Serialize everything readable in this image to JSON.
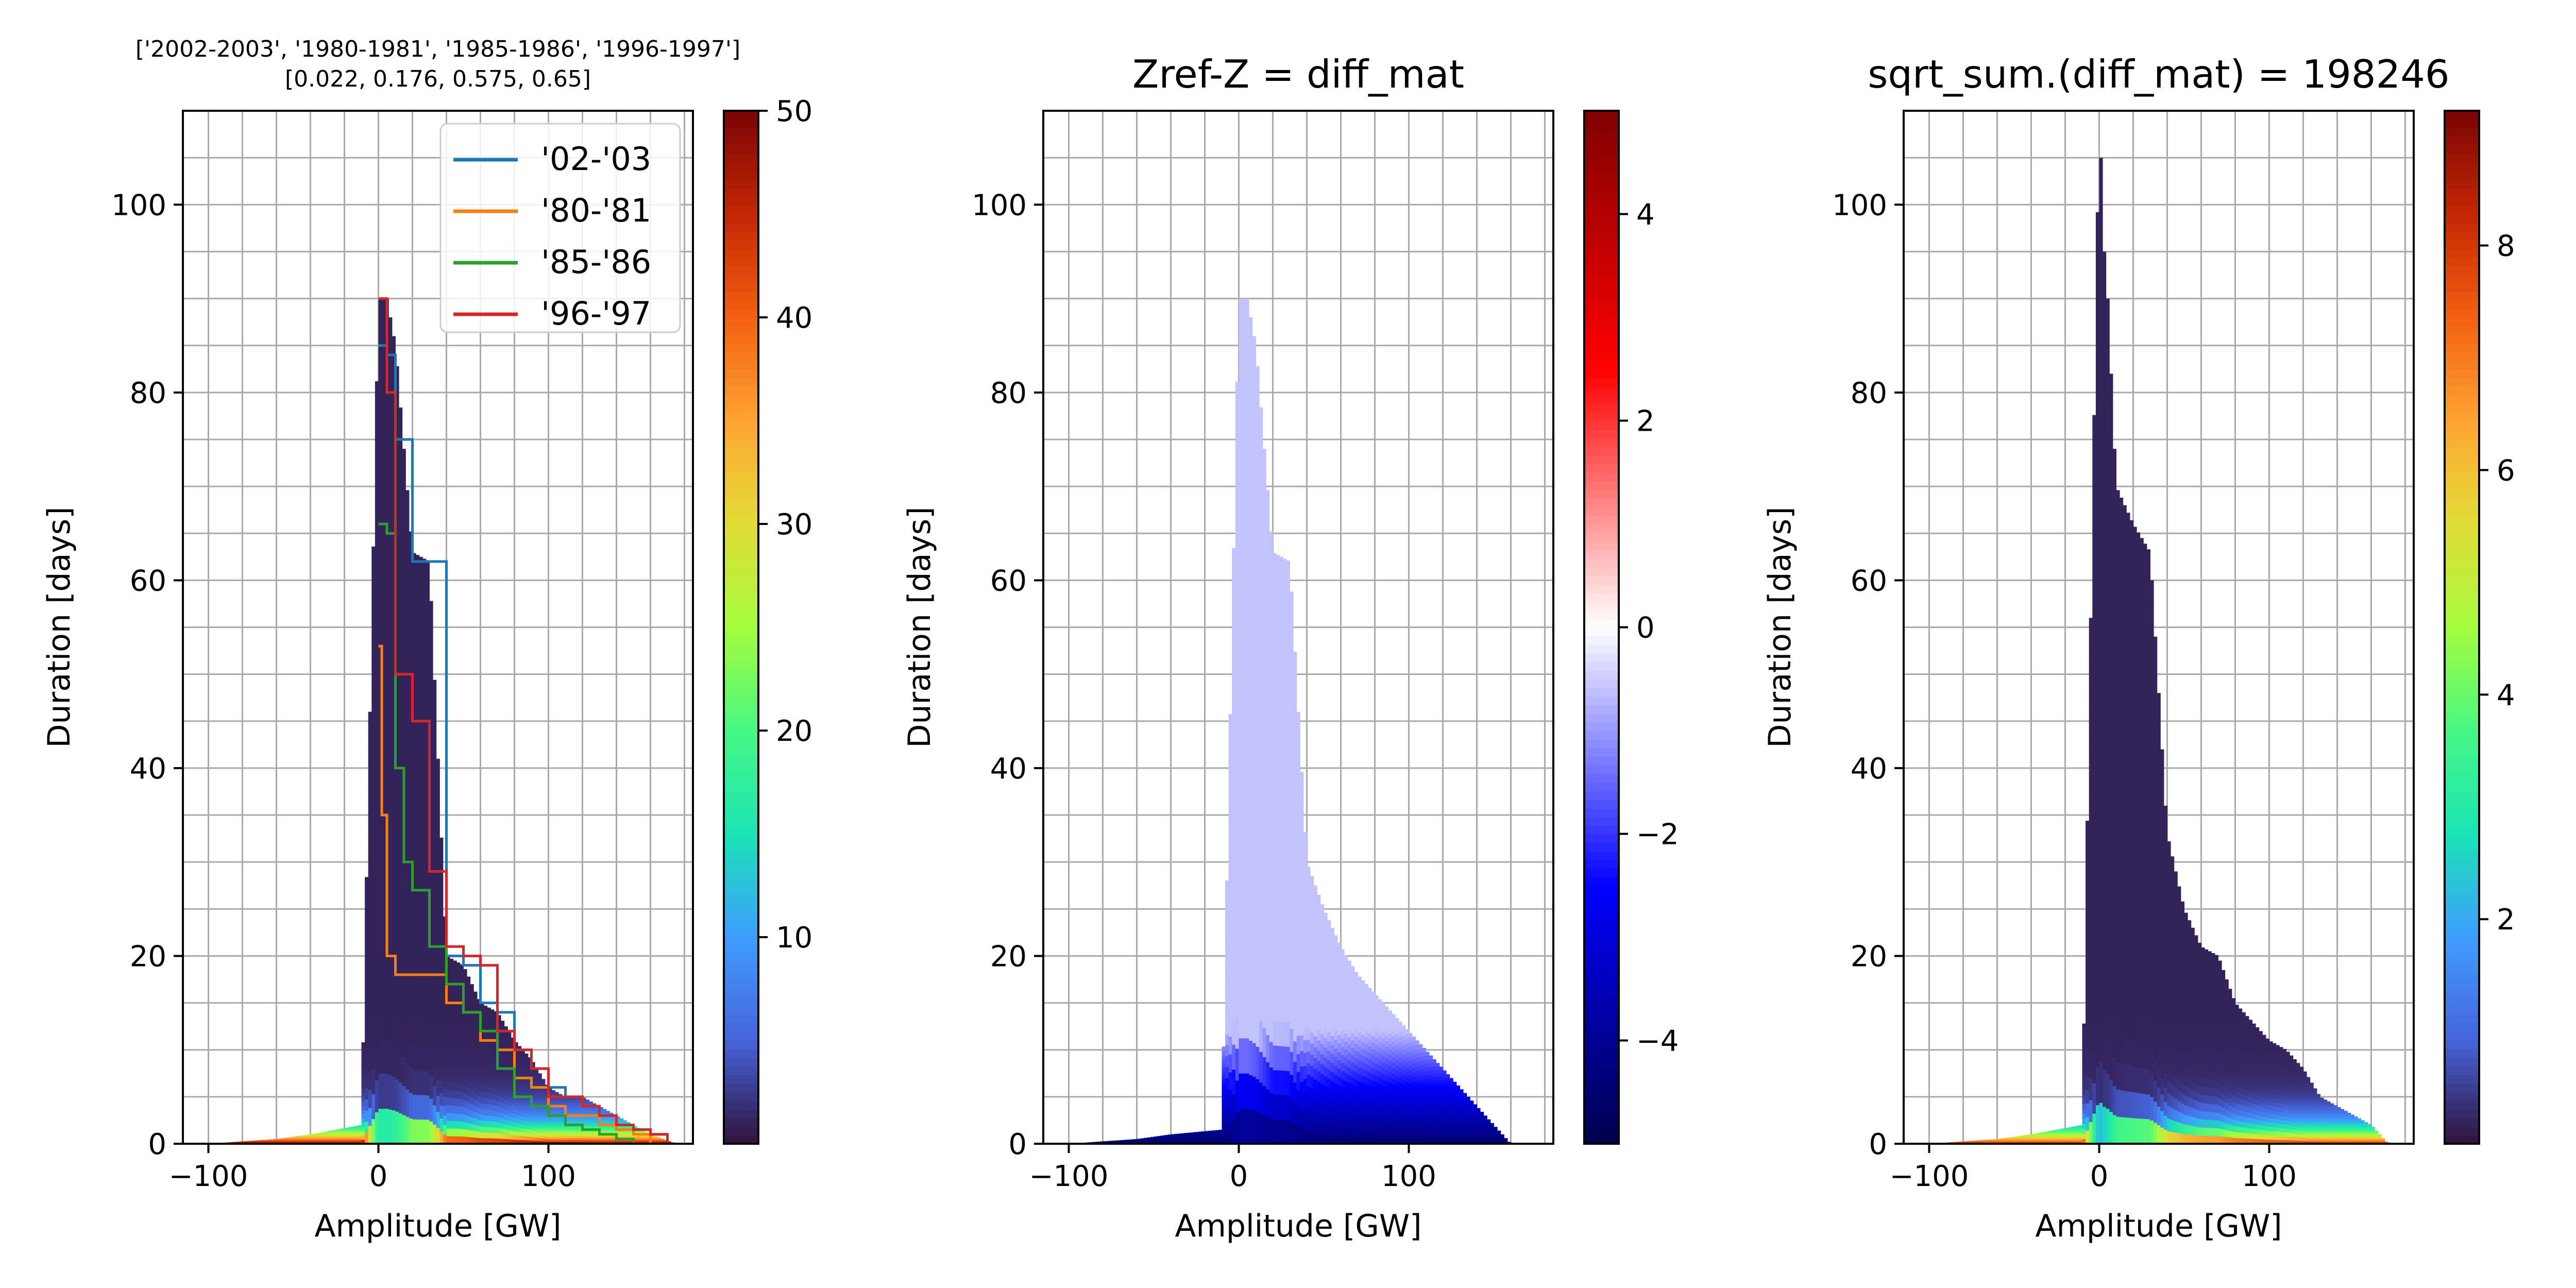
{
  "chart_data": [
    {
      "type": "heatmap",
      "title": "['2002-2003', '1980-1981', '1985-1986', '1996-1997']\n[0.022, 0.176, 0.575, 0.65]",
      "xlabel": "Amplitude [GW]",
      "ylabel": "Duration [days]",
      "xlim": [
        -115,
        185
      ],
      "ylim": [
        0,
        110
      ],
      "xticks": [
        -100,
        0,
        100
      ],
      "yticks": [
        0,
        20,
        40,
        60,
        80,
        100
      ],
      "grid": true,
      "colormap": "turbo",
      "colorbar": {
        "min": 0,
        "max": 50,
        "ticks": [
          10,
          20,
          30,
          40,
          50
        ]
      },
      "legend": {
        "placement": "top-right",
        "entries": [
          "'02-'03",
          "'80-'81",
          "'85-'86",
          "'96-'97"
        ]
      },
      "heat_profile": {
        "amplitude": [
          -100,
          -60,
          -40,
          -10,
          0,
          5,
          10,
          20,
          30,
          40,
          50,
          60,
          70,
          80,
          90,
          100,
          110,
          120,
          130,
          140,
          150,
          160,
          175
        ],
        "max_duration": [
          0,
          0.5,
          1,
          2,
          90,
          90,
          85,
          63,
          62,
          20,
          19,
          15,
          14,
          11,
          9,
          6,
          5,
          5,
          4,
          3,
          2,
          1,
          0
        ]
      },
      "series": [
        {
          "name": "'02-'03",
          "color": "#1f77b4",
          "x": [
            0,
            5,
            10,
            20,
            30,
            40,
            50,
            60,
            70,
            80,
            90,
            100,
            110,
            120,
            130,
            140,
            150,
            160,
            170
          ],
          "y": [
            85,
            84,
            75,
            62,
            62,
            20,
            19,
            15,
            14,
            10,
            8,
            6,
            5,
            4,
            3,
            2,
            1.5,
            1,
            0
          ]
        },
        {
          "name": "'80-'81",
          "color": "#ff7f0e",
          "x": [
            0,
            2,
            5,
            10,
            20,
            30,
            40,
            50,
            60,
            70,
            80,
            90,
            100,
            110,
            120,
            130,
            140,
            150,
            160
          ],
          "y": [
            53,
            35,
            20,
            18,
            18,
            18,
            15,
            14,
            11,
            10,
            7,
            6,
            4,
            3,
            3,
            2,
            1.5,
            1,
            0
          ]
        },
        {
          "name": "'85-'86",
          "color": "#2ca02c",
          "x": [
            0,
            5,
            10,
            15,
            20,
            30,
            40,
            50,
            60,
            70,
            80,
            90,
            100,
            110,
            120,
            130,
            140,
            150
          ],
          "y": [
            66,
            65,
            40,
            30,
            27,
            21,
            17,
            14,
            12,
            8,
            5,
            4,
            3,
            2,
            1.5,
            1,
            0.5,
            0
          ]
        },
        {
          "name": "'96-'97",
          "color": "#d62728",
          "x": [
            0,
            5,
            10,
            20,
            30,
            40,
            50,
            60,
            70,
            80,
            90,
            100,
            110,
            120,
            130,
            140,
            150,
            160,
            170
          ],
          "y": [
            90,
            80,
            50,
            45,
            29,
            21,
            20,
            19,
            12,
            10,
            8,
            5,
            5,
            4,
            3,
            2,
            1.5,
            1,
            0
          ]
        }
      ]
    },
    {
      "type": "heatmap",
      "title": "Zref-Z = diff_mat",
      "xlabel": "Amplitude [GW]",
      "ylabel": "Duration [days]",
      "xlim": [
        -115,
        185
      ],
      "ylim": [
        0,
        110
      ],
      "xticks": [
        -100,
        0,
        100
      ],
      "yticks": [
        0,
        20,
        40,
        60,
        80,
        100
      ],
      "grid": true,
      "colormap": "seismic",
      "colorbar": {
        "min": -5,
        "max": 5,
        "ticks": [
          -4,
          -2,
          0,
          2,
          4
        ]
      },
      "heat_profile": {
        "amplitude": [
          -100,
          -60,
          -40,
          -10,
          0,
          5,
          10,
          20,
          30,
          40,
          50,
          60,
          70,
          80,
          90,
          100,
          110,
          120,
          130,
          140,
          150,
          160
        ],
        "max_duration": [
          0,
          0.5,
          1,
          1.5,
          90,
          90,
          85,
          63,
          62,
          30,
          25,
          21,
          18,
          16,
          14,
          12,
          10,
          8,
          6,
          4,
          2,
          0
        ],
        "value_near_top": -0.6,
        "value_near_bottom": -4.5
      }
    },
    {
      "type": "heatmap",
      "title": "sqrt_sum.(diff_mat) = 198246",
      "xlabel": "Amplitude [GW]",
      "ylabel": "Duration [days]",
      "xlim": [
        -115,
        185
      ],
      "ylim": [
        0,
        110
      ],
      "xticks": [
        -100,
        0,
        100
      ],
      "yticks": [
        0,
        20,
        40,
        60,
        80,
        100
      ],
      "grid": true,
      "colormap": "turbo",
      "colorbar": {
        "min": 0,
        "max": 9.2,
        "ticks": [
          2,
          4,
          6,
          8
        ]
      },
      "heat_profile": {
        "amplitude": [
          -100,
          -60,
          -40,
          -10,
          0,
          1,
          3,
          5,
          10,
          20,
          30,
          40,
          50,
          60,
          70,
          80,
          90,
          100,
          110,
          120,
          130,
          140,
          150,
          160,
          170
        ],
        "max_duration": [
          0,
          0.5,
          1,
          2,
          110,
          105,
          95,
          90,
          70,
          66,
          63,
          33,
          25,
          21,
          20,
          15,
          13,
          11,
          10,
          8,
          5,
          4,
          3,
          2,
          0
        ]
      }
    }
  ]
}
